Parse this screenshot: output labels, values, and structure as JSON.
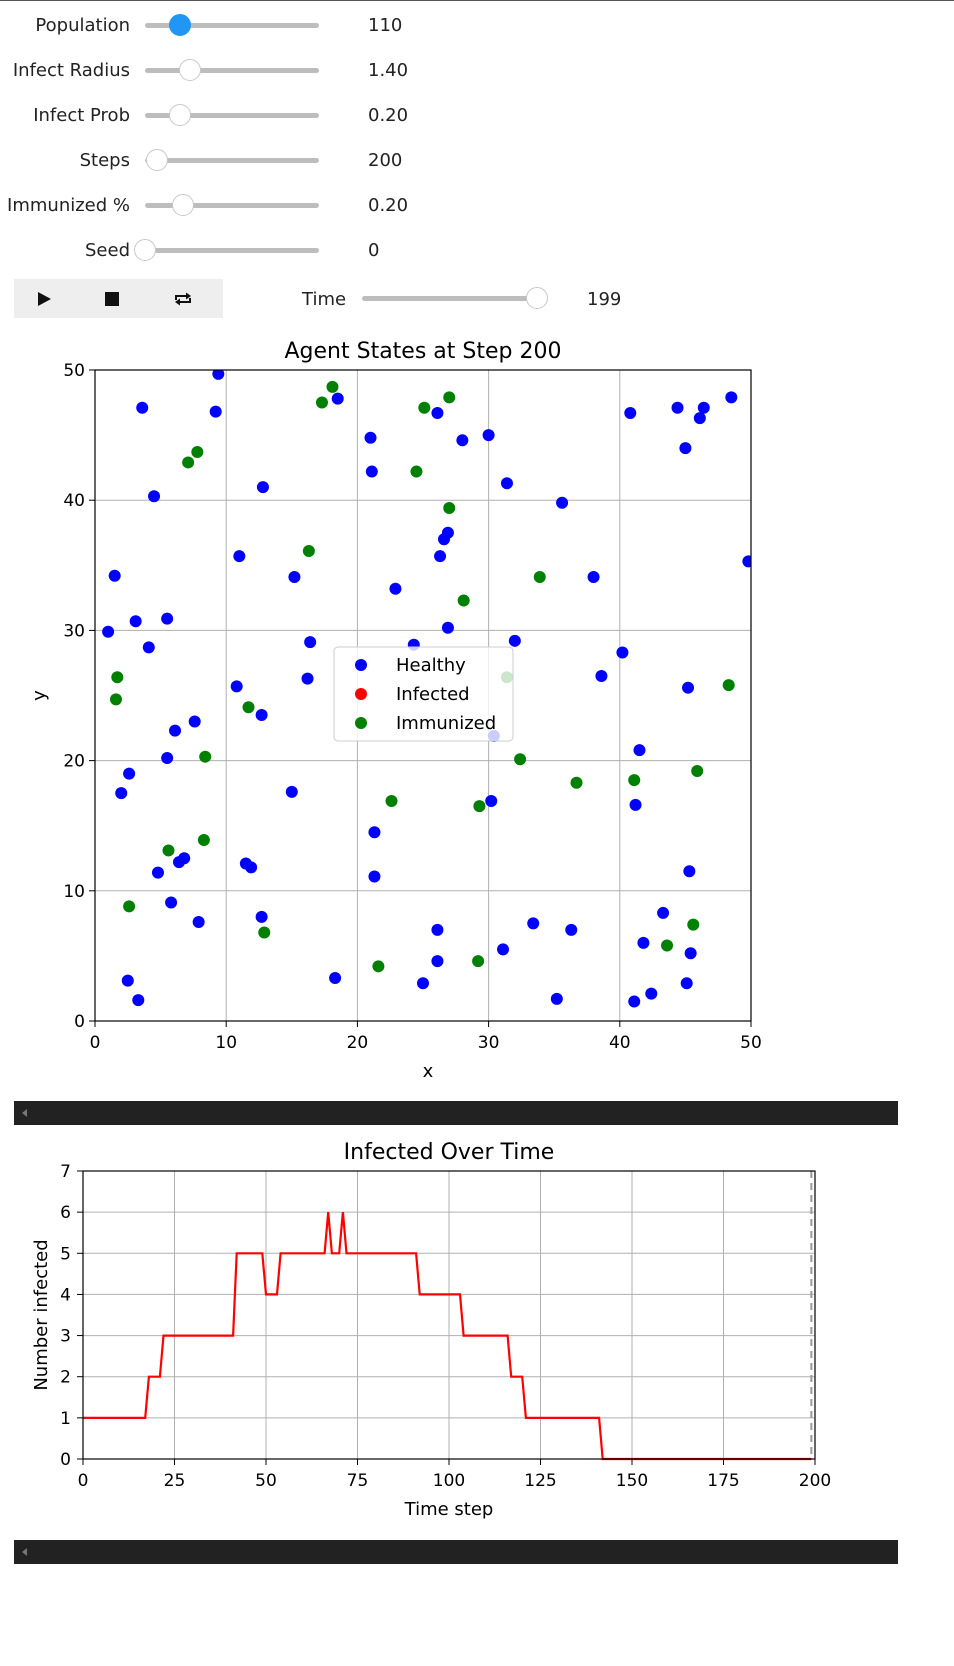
{
  "controls": {
    "sliders": [
      {
        "id": "population",
        "label": "Population",
        "readout": "110",
        "fraction": 0.2,
        "active": true
      },
      {
        "id": "infect-radius",
        "label": "Infect Radius",
        "readout": "1.40",
        "fraction": 0.26,
        "active": false
      },
      {
        "id": "infect-prob",
        "label": "Infect Prob",
        "readout": "0.20",
        "fraction": 0.2,
        "active": false
      },
      {
        "id": "steps",
        "label": "Steps",
        "readout": "200",
        "fraction": 0.07,
        "active": false
      },
      {
        "id": "immunized",
        "label": "Immunized %",
        "readout": "0.20",
        "fraction": 0.22,
        "active": false
      },
      {
        "id": "seed",
        "label": "Seed",
        "readout": "0",
        "fraction": 0.0,
        "active": false
      }
    ],
    "playback": {
      "play_icon": "play-icon",
      "stop_icon": "stop-icon",
      "repeat_icon": "repeat-icon",
      "time_label": "Time",
      "time_readout": "199",
      "time_fraction": 1.0
    }
  },
  "colors": {
    "healthy": "#0000ff",
    "infected": "#ff0000",
    "immunized": "#008000",
    "slider_active": "#2196f3",
    "grid": "#b0b0b0"
  },
  "chart_data": [
    {
      "type": "scatter",
      "title": "Agent States at Step 200",
      "xlabel": "x",
      "ylabel": "y",
      "xlim": [
        0,
        50
      ],
      "ylim": [
        0,
        50
      ],
      "xticks": [
        0,
        10,
        20,
        30,
        40,
        50
      ],
      "yticks": [
        0,
        10,
        20,
        30,
        40,
        50
      ],
      "grid": true,
      "legend": "center",
      "series": [
        {
          "name": "Healthy",
          "color": "#0000ff",
          "points": [
            [
              9.4,
              49.7
            ],
            [
              3.6,
              47.1
            ],
            [
              9.2,
              46.8
            ],
            [
              18.5,
              47.8
            ],
            [
              4.5,
              40.3
            ],
            [
              12.8,
              41.0
            ],
            [
              21.0,
              44.8
            ],
            [
              26.1,
              46.7
            ],
            [
              28.0,
              44.6
            ],
            [
              30.0,
              45.0
            ],
            [
              21.1,
              42.2
            ],
            [
              31.4,
              41.3
            ],
            [
              35.6,
              39.8
            ],
            [
              40.8,
              46.7
            ],
            [
              44.4,
              47.1
            ],
            [
              45.0,
              44.0
            ],
            [
              46.1,
              46.3
            ],
            [
              46.4,
              47.1
            ],
            [
              48.5,
              47.9
            ],
            [
              26.9,
              37.5
            ],
            [
              26.6,
              37.0
            ],
            [
              26.3,
              35.7
            ],
            [
              11.0,
              35.7
            ],
            [
              15.2,
              34.1
            ],
            [
              22.9,
              33.2
            ],
            [
              38.0,
              34.1
            ],
            [
              49.8,
              35.3
            ],
            [
              1.5,
              34.2
            ],
            [
              1.0,
              29.9
            ],
            [
              3.1,
              30.7
            ],
            [
              5.5,
              30.9
            ],
            [
              4.1,
              28.7
            ],
            [
              16.4,
              29.1
            ],
            [
              26.9,
              30.2
            ],
            [
              24.3,
              28.9
            ],
            [
              32.0,
              29.2
            ],
            [
              40.2,
              28.3
            ],
            [
              38.6,
              26.5
            ],
            [
              45.2,
              25.6
            ],
            [
              16.2,
              26.3
            ],
            [
              10.8,
              25.7
            ],
            [
              12.7,
              23.5
            ],
            [
              7.6,
              23.0
            ],
            [
              6.1,
              22.3
            ],
            [
              5.5,
              20.2
            ],
            [
              30.4,
              21.9
            ],
            [
              41.5,
              20.8
            ],
            [
              2.6,
              19.0
            ],
            [
              2.0,
              17.5
            ],
            [
              15.0,
              17.6
            ],
            [
              30.2,
              16.9
            ],
            [
              41.2,
              16.6
            ],
            [
              21.3,
              14.5
            ],
            [
              21.3,
              11.1
            ],
            [
              11.5,
              12.1
            ],
            [
              11.9,
              11.8
            ],
            [
              6.8,
              12.5
            ],
            [
              6.4,
              12.2
            ],
            [
              4.8,
              11.4
            ],
            [
              45.3,
              11.5
            ],
            [
              5.8,
              9.1
            ],
            [
              7.9,
              7.6
            ],
            [
              12.7,
              8.0
            ],
            [
              43.3,
              8.3
            ],
            [
              33.4,
              7.5
            ],
            [
              36.3,
              7.0
            ],
            [
              26.1,
              7.0
            ],
            [
              31.1,
              5.5
            ],
            [
              41.8,
              6.0
            ],
            [
              45.4,
              5.2
            ],
            [
              26.1,
              4.6
            ],
            [
              25.0,
              2.9
            ],
            [
              18.3,
              3.3
            ],
            [
              2.5,
              3.1
            ],
            [
              3.3,
              1.6
            ],
            [
              35.2,
              1.7
            ],
            [
              41.1,
              1.5
            ],
            [
              42.4,
              2.1
            ],
            [
              45.1,
              2.9
            ]
          ]
        },
        {
          "name": "Infected",
          "color": "#ff0000",
          "points": []
        },
        {
          "name": "Immunized",
          "color": "#008000",
          "points": [
            [
              18.1,
              48.7
            ],
            [
              17.3,
              47.5
            ],
            [
              25.1,
              47.1
            ],
            [
              27.0,
              47.9
            ],
            [
              7.8,
              43.7
            ],
            [
              7.1,
              42.9
            ],
            [
              24.5,
              42.2
            ],
            [
              27.0,
              39.4
            ],
            [
              16.3,
              36.1
            ],
            [
              33.9,
              34.1
            ],
            [
              28.1,
              32.3
            ],
            [
              1.7,
              26.4
            ],
            [
              1.6,
              24.7
            ],
            [
              31.4,
              26.4
            ],
            [
              11.7,
              24.1
            ],
            [
              48.3,
              25.8
            ],
            [
              8.4,
              20.3
            ],
            [
              32.4,
              20.1
            ],
            [
              36.7,
              18.3
            ],
            [
              41.1,
              18.5
            ],
            [
              45.9,
              19.2
            ],
            [
              22.6,
              16.9
            ],
            [
              29.3,
              16.5
            ],
            [
              8.3,
              13.9
            ],
            [
              5.6,
              13.1
            ],
            [
              2.6,
              8.8
            ],
            [
              12.9,
              6.8
            ],
            [
              45.6,
              7.4
            ],
            [
              43.6,
              5.8
            ],
            [
              21.6,
              4.2
            ],
            [
              29.2,
              4.6
            ]
          ]
        }
      ]
    },
    {
      "type": "line",
      "title": "Infected Over Time",
      "xlabel": "Time step",
      "ylabel": "Number infected",
      "xlim": [
        0,
        200
      ],
      "ylim": [
        0,
        7
      ],
      "xticks": [
        0,
        25,
        50,
        75,
        100,
        125,
        150,
        175,
        200
      ],
      "yticks": [
        0,
        1,
        2,
        3,
        4,
        5,
        6,
        7
      ],
      "grid": true,
      "current_step_marker": 199,
      "series": [
        {
          "color": "#ff0000",
          "x": [
            0,
            17,
            18,
            21,
            22,
            41,
            42,
            49,
            50,
            53,
            54,
            66,
            67,
            68,
            70,
            71,
            72,
            91,
            92,
            103,
            104,
            116,
            117,
            120,
            121,
            141,
            142,
            199
          ],
          "y": [
            1,
            1,
            2,
            2,
            3,
            3,
            5,
            5,
            4,
            4,
            5,
            5,
            6,
            5,
            5,
            6,
            5,
            5,
            4,
            4,
            3,
            3,
            2,
            2,
            1,
            1,
            0,
            0
          ]
        }
      ]
    }
  ]
}
